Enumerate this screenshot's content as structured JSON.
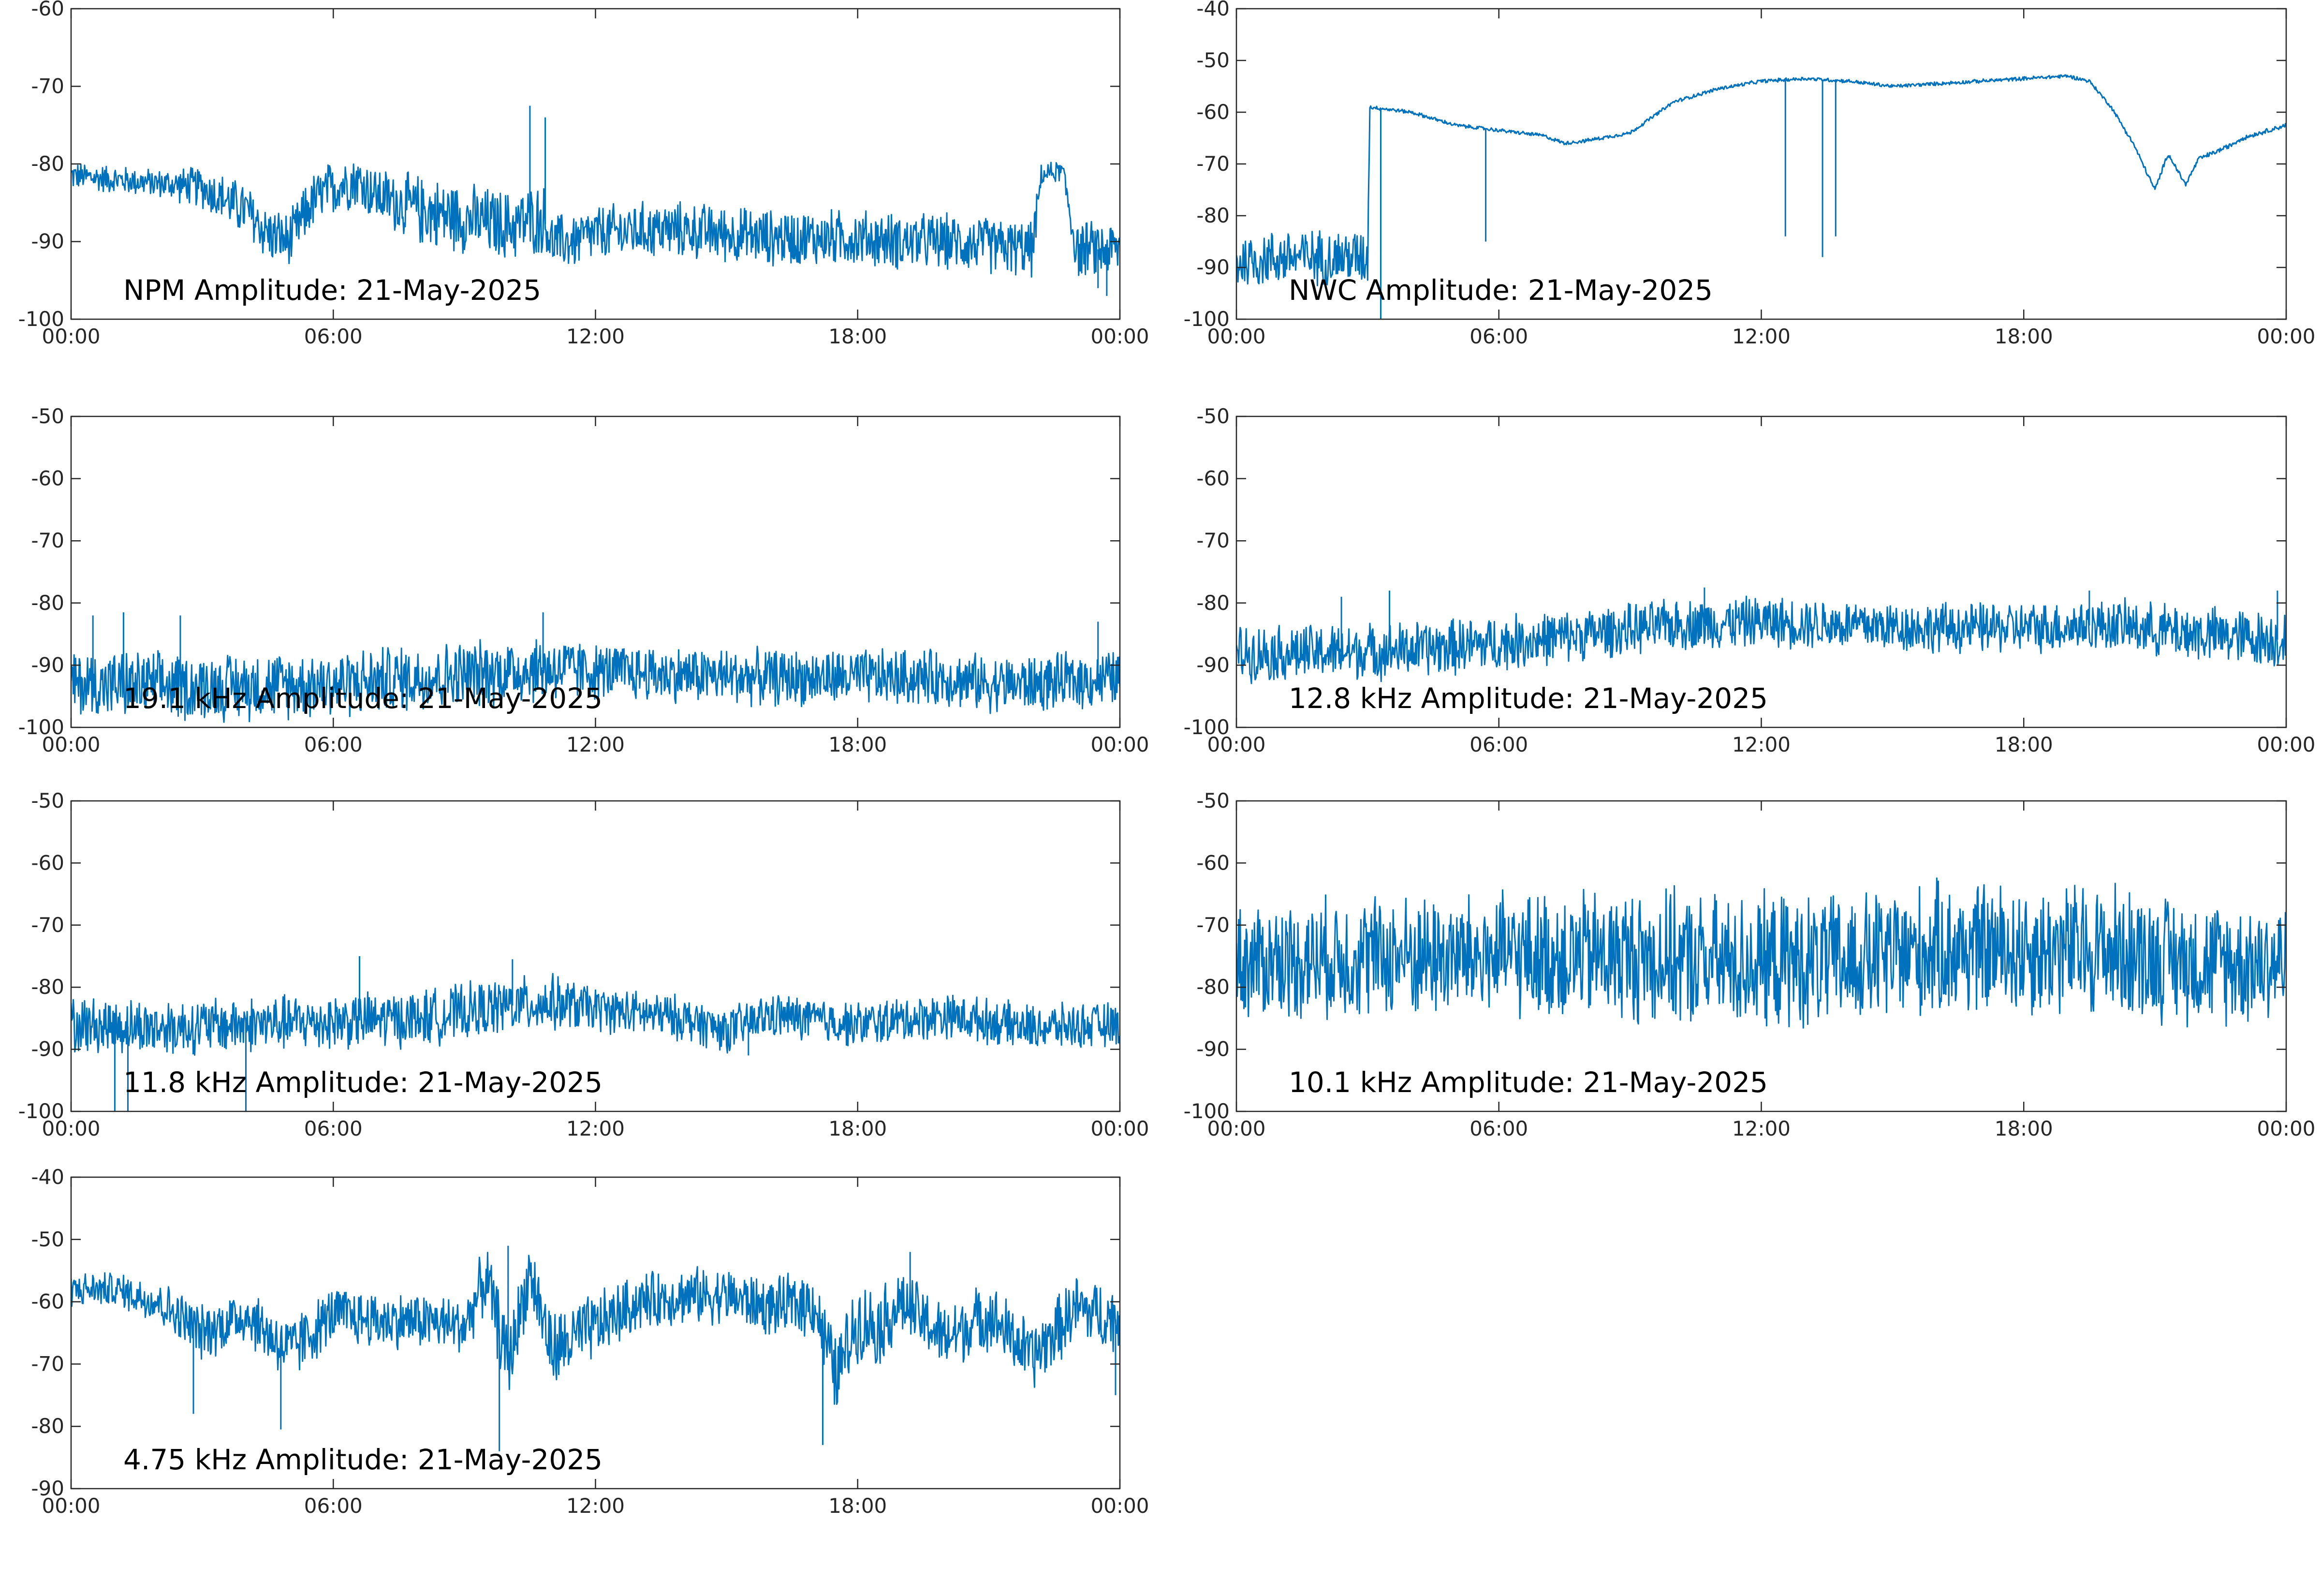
{
  "line_color": "#0072BD",
  "chart_data": [
    {
      "type": "line",
      "title": "NPM Amplitude: 21-May-2025",
      "ylim": [
        -100,
        -60
      ],
      "yticks": [
        "-60",
        "-70",
        "-80",
        "-90",
        "-100"
      ],
      "xticks": [
        "00:00",
        "06:00",
        "12:00",
        "18:00",
        "00:00"
      ],
      "xlim_hours": [
        0,
        24
      ],
      "grid": false,
      "series": [
        {
          "x_hours": [
            0,
            1,
            2,
            3,
            4,
            4.5,
            5,
            5.5,
            6,
            6.5,
            7,
            8,
            9,
            10,
            10.8,
            11,
            11.5,
            12,
            13,
            14,
            15,
            16,
            17,
            18,
            19,
            20,
            21,
            22,
            22.2,
            22.5,
            22.7,
            23,
            23.3,
            23.5,
            24
          ],
          "center": [
            -81.5,
            -82,
            -82.5,
            -83,
            -86,
            -89,
            -90,
            -85,
            -83,
            -82,
            -84,
            -86,
            -87,
            -88,
            -87,
            -90,
            -90,
            -89,
            -88.5,
            -88.5,
            -89,
            -89.5,
            -89.5,
            -89.5,
            -90,
            -90,
            -90.5,
            -91,
            -81.5,
            -81,
            -81,
            -91,
            -91,
            -91,
            -91
          ],
          "amplitude": [
            2,
            2,
            2,
            3,
            4,
            4,
            4,
            4,
            4,
            4,
            4,
            5,
            5,
            5,
            5,
            4,
            4,
            4,
            4,
            4,
            4,
            4,
            4,
            4,
            4,
            4,
            4,
            4,
            1.5,
            1.5,
            1.5,
            4,
            4,
            4,
            4
          ],
          "spikes": [
            [
              10.5,
              -72.5
            ],
            [
              10.85,
              -74
            ],
            [
              23.5,
              -96
            ],
            [
              23.7,
              -97
            ]
          ]
        }
      ]
    },
    {
      "type": "line",
      "title": "NWC Amplitude: 21-May-2025",
      "ylim": [
        -100,
        -40
      ],
      "yticks": [
        "-40",
        "-50",
        "-60",
        "-70",
        "-80",
        "-90",
        "-100"
      ],
      "xticks": [
        "00:00",
        "06:00",
        "12:00",
        "18:00",
        "00:00"
      ],
      "xlim_hours": [
        0,
        24
      ],
      "grid": false,
      "series": [
        {
          "x_hours": [
            0,
            1,
            2,
            3.0,
            3.05,
            4,
            5,
            6,
            7,
            7.5,
            8,
            9,
            10,
            11,
            12,
            13,
            14,
            15,
            16,
            17,
            18,
            19,
            19.5,
            20,
            20.5,
            21,
            21.3,
            21.7,
            22,
            22.3,
            22.7,
            23,
            24
          ],
          "center": [
            -89,
            -88,
            -88,
            -88,
            -59,
            -60,
            -62.5,
            -63.5,
            -64.5,
            -66,
            -65.5,
            -64,
            -58,
            -55.5,
            -54,
            -53.5,
            -54,
            -55,
            -54.5,
            -54,
            -53.5,
            -53,
            -54,
            -59,
            -66,
            -75,
            -68,
            -74,
            -69,
            -68,
            -66.5,
            -65,
            -62.5
          ],
          "amplitude": [
            6,
            6,
            6,
            6,
            0.4,
            0.4,
            0.4,
            0.4,
            0.4,
            0.4,
            0.4,
            0.4,
            0.4,
            0.4,
            0.4,
            0.4,
            0.4,
            0.4,
            0.4,
            0.4,
            0.4,
            0.4,
            0.4,
            0.4,
            0.5,
            0.5,
            0.5,
            0.5,
            0.5,
            0.5,
            0.5,
            0.5,
            0.5
          ],
          "spikes": [
            [
              3.3,
              -100
            ],
            [
              5.7,
              -85
            ],
            [
              12.55,
              -84
            ],
            [
              13.4,
              -88
            ],
            [
              13.7,
              -84
            ]
          ]
        }
      ]
    },
    {
      "type": "line",
      "title": "19.1 kHz Amplitude: 21-May-2025",
      "ylim": [
        -100,
        -50
      ],
      "yticks": [
        "-50",
        "-60",
        "-70",
        "-80",
        "-90",
        "-100"
      ],
      "xticks": [
        "00:00",
        "06:00",
        "12:00",
        "18:00",
        "00:00"
      ],
      "xlim_hours": [
        0,
        24
      ],
      "grid": false,
      "series": [
        {
          "x_hours": [
            0,
            3,
            6,
            8,
            10,
            11,
            12,
            14,
            16,
            18,
            20,
            21,
            22,
            24
          ],
          "center": [
            -93,
            -93.5,
            -93,
            -92,
            -91,
            -90.5,
            -91,
            -91.5,
            -92,
            -92,
            -92,
            -93,
            -93,
            -92
          ],
          "amplitude": [
            6,
            6,
            6,
            6,
            6,
            6,
            5,
            5,
            5,
            5,
            5,
            5,
            5,
            5
          ],
          "spikes": [
            [
              0.5,
              -82
            ],
            [
              1.2,
              -81.5
            ],
            [
              2.5,
              -82
            ],
            [
              10.8,
              -81.5
            ],
            [
              23.5,
              -83
            ]
          ]
        }
      ]
    },
    {
      "type": "line",
      "title": "12.8 kHz Amplitude: 21-May-2025",
      "ylim": [
        -100,
        -50
      ],
      "yticks": [
        "-50",
        "-60",
        "-70",
        "-80",
        "-90",
        "-100"
      ],
      "xticks": [
        "00:00",
        "06:00",
        "12:00",
        "18:00",
        "00:00"
      ],
      "xlim_hours": [
        0,
        24
      ],
      "grid": false,
      "series": [
        {
          "x_hours": [
            0,
            2,
            4,
            6,
            8,
            10,
            12,
            14,
            16,
            18,
            20,
            22,
            24
          ],
          "center": [
            -88,
            -88,
            -87.5,
            -86.5,
            -85,
            -83.5,
            -83,
            -83.5,
            -84,
            -84,
            -83.5,
            -85,
            -86
          ],
          "amplitude": [
            5,
            5,
            5,
            5,
            4.5,
            4.5,
            4.5,
            4.5,
            4.5,
            4.5,
            4.5,
            5,
            5
          ],
          "spikes": [
            [
              2.4,
              -79
            ],
            [
              3.5,
              -78
            ],
            [
              10.7,
              -77.5
            ],
            [
              19.5,
              -78
            ],
            [
              23.8,
              -78
            ]
          ]
        }
      ]
    },
    {
      "type": "line",
      "title": "11.8 kHz Amplitude: 21-May-2025",
      "ylim": [
        -100,
        -50
      ],
      "yticks": [
        "-50",
        "-60",
        "-70",
        "-80",
        "-90",
        "-100"
      ],
      "xticks": [
        "00:00",
        "06:00",
        "12:00",
        "18:00",
        "00:00"
      ],
      "xlim_hours": [
        0,
        24
      ],
      "grid": false,
      "series": [
        {
          "x_hours": [
            0,
            2,
            4,
            6,
            8,
            10,
            11,
            12,
            14,
            15,
            16,
            18,
            20,
            22,
            24
          ],
          "center": [
            -86,
            -86.5,
            -86,
            -85.5,
            -85,
            -83,
            -82.5,
            -83.5,
            -85,
            -87,
            -84.5,
            -86,
            -84.5,
            -86.5,
            -86
          ],
          "amplitude": [
            5,
            5,
            5,
            5,
            5,
            5,
            5,
            4,
            4,
            4,
            4,
            4,
            4,
            4,
            4
          ],
          "spikes": [
            [
              1.0,
              -100
            ],
            [
              1.3,
              -100
            ],
            [
              4.0,
              -100
            ],
            [
              6.6,
              -75
            ],
            [
              10.1,
              -75.5
            ],
            [
              15.5,
              -91
            ]
          ]
        }
      ]
    },
    {
      "type": "line",
      "title": "10.1 kHz Amplitude: 21-May-2025",
      "ylim": [
        -100,
        -50
      ],
      "yticks": [
        "-50",
        "-60",
        "-70",
        "-80",
        "-90",
        "-100"
      ],
      "xticks": [
        "00:00",
        "06:00",
        "12:00",
        "18:00",
        "00:00"
      ],
      "xlim_hours": [
        0,
        24
      ],
      "grid": false,
      "series": [
        {
          "x_hours": [
            0,
            3,
            6,
            9,
            11,
            12,
            14,
            16,
            18,
            20,
            22,
            24
          ],
          "center": [
            -76,
            -75,
            -75,
            -75,
            -76,
            -76,
            -76,
            -74,
            -74,
            -74,
            -76,
            -76
          ],
          "amplitude": [
            10,
            11,
            11,
            12,
            12,
            12,
            12,
            12,
            12,
            12,
            11,
            11
          ],
          "spikes": []
        }
      ]
    },
    {
      "type": "line",
      "title": "4.75 kHz Amplitude: 21-May-2025",
      "ylim": [
        -90,
        -40
      ],
      "yticks": [
        "-40",
        "-50",
        "-60",
        "-70",
        "-80",
        "-90"
      ],
      "xticks": [
        "00:00",
        "06:00",
        "12:00",
        "18:00",
        "00:00"
      ],
      "xlim_hours": [
        0,
        24
      ],
      "grid": false,
      "series": [
        {
          "x_hours": [
            0,
            1,
            2,
            3,
            4,
            5,
            6,
            7,
            8,
            9,
            9.5,
            10,
            10.5,
            11,
            12,
            13,
            14,
            15,
            16,
            17,
            17.5,
            18,
            18.5,
            19,
            20,
            21,
            22,
            23,
            24
          ],
          "center": [
            -58,
            -58,
            -60,
            -65,
            -62,
            -68,
            -62,
            -63,
            -63,
            -64,
            -56,
            -70,
            -55,
            -68,
            -64,
            -60,
            -59,
            -59,
            -61,
            -60,
            -72,
            -63,
            -64,
            -60,
            -66,
            -62,
            -69,
            -61,
            -63
          ],
          "amplitude": [
            3,
            3,
            4,
            5,
            5,
            6,
            5,
            5,
            5,
            5,
            6,
            7,
            6,
            7,
            6,
            5,
            5,
            5,
            5,
            6,
            7,
            7,
            7,
            6,
            6,
            6,
            6,
            6,
            6
          ],
          "spikes": [
            [
              2.8,
              -78
            ],
            [
              4.8,
              -80.5
            ],
            [
              9.8,
              -84
            ],
            [
              10.0,
              -51
            ],
            [
              17.2,
              -83
            ],
            [
              19.2,
              -52
            ],
            [
              23.9,
              -75
            ]
          ]
        }
      ]
    }
  ]
}
